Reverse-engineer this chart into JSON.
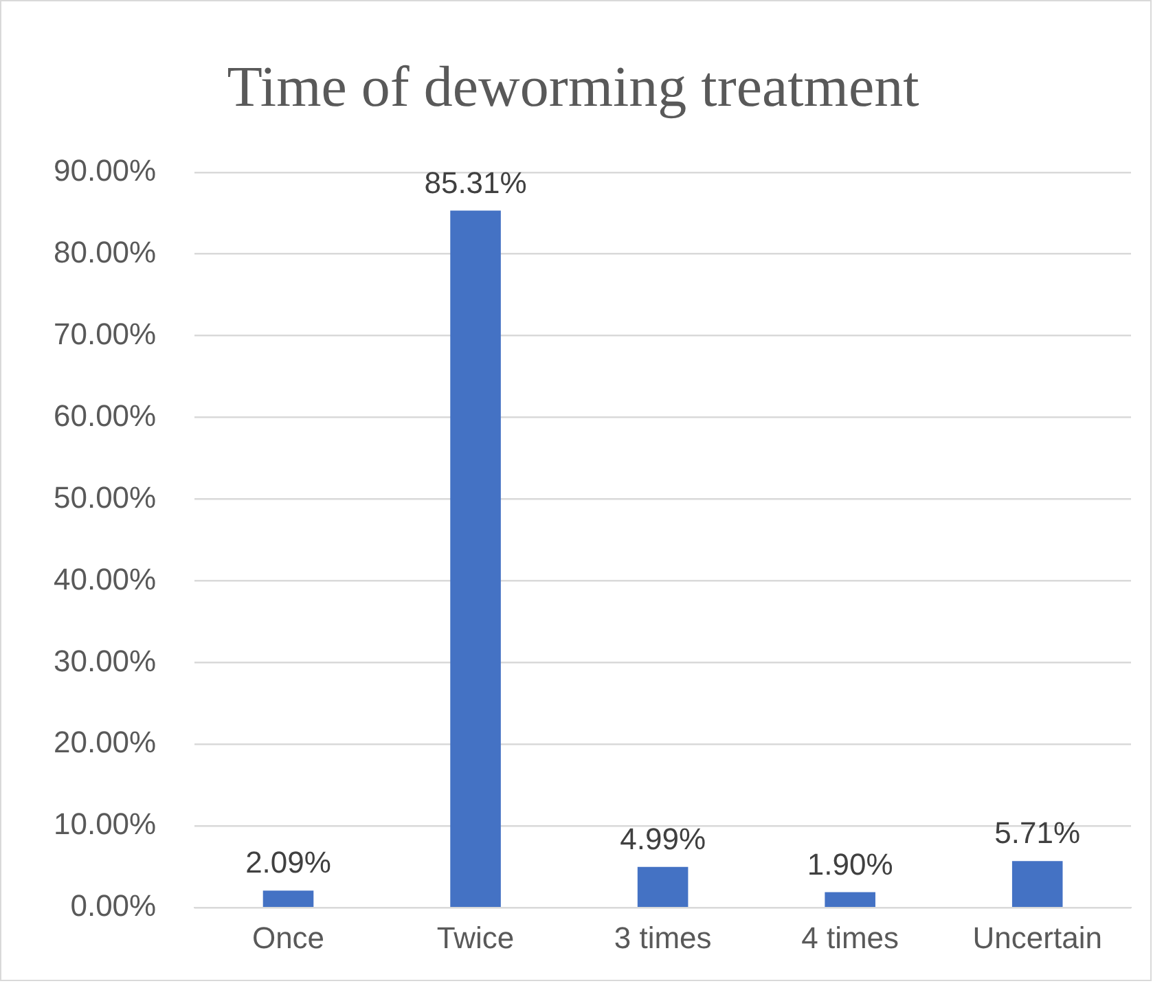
{
  "chart_data": {
    "type": "bar",
    "title": "Time of deworming treatment",
    "categories": [
      "Once",
      "Twice",
      "3 times",
      "4 times",
      "Uncertain"
    ],
    "values": [
      2.09,
      85.31,
      4.99,
      1.9,
      5.71
    ],
    "value_labels": [
      "2.09%",
      "85.31%",
      "4.99%",
      "1.90%",
      "5.71%"
    ],
    "color": "#4472c4",
    "ylim": [
      0,
      90
    ],
    "yticks": [
      {
        "value": 0,
        "label": "0.00%"
      },
      {
        "value": 10,
        "label": "10.00%"
      },
      {
        "value": 20,
        "label": "20.00%"
      },
      {
        "value": 30,
        "label": "30.00%"
      },
      {
        "value": 40,
        "label": "40.00%"
      },
      {
        "value": 50,
        "label": "50.00%"
      },
      {
        "value": 60,
        "label": "60.00%"
      },
      {
        "value": 70,
        "label": "70.00%"
      },
      {
        "value": 80,
        "label": "80.00%"
      },
      {
        "value": 90,
        "label": "90.00%"
      }
    ],
    "grid": "y"
  }
}
